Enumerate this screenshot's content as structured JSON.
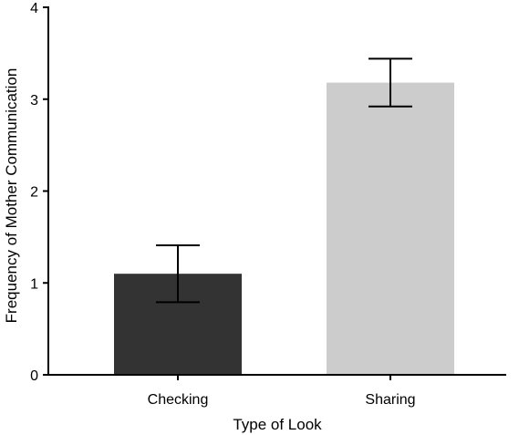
{
  "chart_data": {
    "type": "bar",
    "categories": [
      "Checking",
      "Sharing"
    ],
    "values": [
      1.1,
      3.18
    ],
    "error": [
      0.31,
      0.26
    ],
    "colors": [
      "#333333",
      "#cccccc"
    ],
    "xlabel": "Type of Look",
    "ylabel": "Frequency of Mother Communication",
    "ylim": [
      0,
      4
    ],
    "yticks": [
      0,
      1,
      2,
      3,
      4
    ],
    "grid": false,
    "legend": "none"
  }
}
